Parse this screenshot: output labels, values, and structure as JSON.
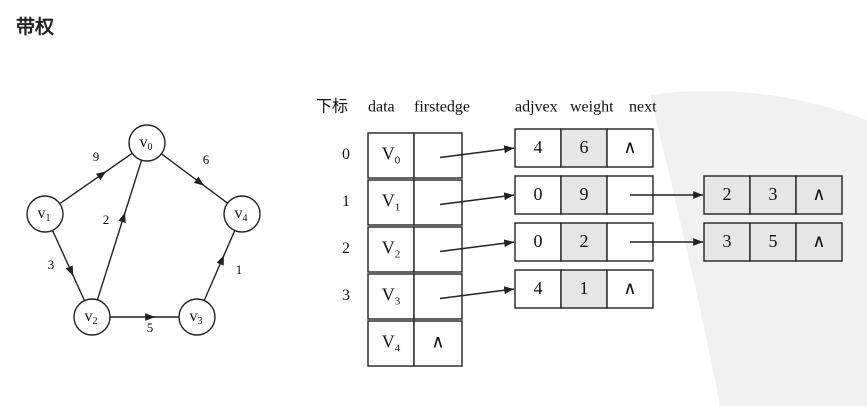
{
  "heading": "带权",
  "graph": {
    "vertices": [
      {
        "id": "v0",
        "base": "v",
        "sub": "0"
      },
      {
        "id": "v1",
        "base": "v",
        "sub": "1"
      },
      {
        "id": "v2",
        "base": "v",
        "sub": "2"
      },
      {
        "id": "v3",
        "base": "v",
        "sub": "3"
      },
      {
        "id": "v4",
        "base": "v",
        "sub": "4"
      }
    ],
    "edges": [
      {
        "from": "v1",
        "to": "v0",
        "weight": "9"
      },
      {
        "from": "v0",
        "to": "v4",
        "weight": "6"
      },
      {
        "from": "v2",
        "to": "v0",
        "weight": "2"
      },
      {
        "from": "v1",
        "to": "v2",
        "weight": "3"
      },
      {
        "from": "v2",
        "to": "v3",
        "weight": "5"
      },
      {
        "from": "v3",
        "to": "v4",
        "weight": "1"
      }
    ]
  },
  "table": {
    "header_index": "下标",
    "header_data": "data",
    "header_firstedge": "firstedge",
    "header_adjvex": "adjvex",
    "header_weight": "weight",
    "header_next": "next",
    "null_symbol": "∧",
    "rows": [
      {
        "index": "0",
        "base": "V",
        "sub": "0"
      },
      {
        "index": "1",
        "base": "V",
        "sub": "1"
      },
      {
        "index": "2",
        "base": "V",
        "sub": "2"
      },
      {
        "index": "3",
        "base": "V",
        "sub": "3"
      },
      {
        "index": "",
        "base": "V",
        "sub": "4"
      }
    ],
    "edge_nodes": [
      {
        "row": 0,
        "col": 0,
        "adjvex": "4",
        "weight": "6",
        "next": "∧"
      },
      {
        "row": 1,
        "col": 0,
        "adjvex": "0",
        "weight": "9",
        "next": ""
      },
      {
        "row": 1,
        "col": 1,
        "adjvex": "2",
        "weight": "3",
        "next": "∧"
      },
      {
        "row": 2,
        "col": 0,
        "adjvex": "0",
        "weight": "2",
        "next": ""
      },
      {
        "row": 2,
        "col": 1,
        "adjvex": "3",
        "weight": "5",
        "next": "∧"
      },
      {
        "row": 3,
        "col": 0,
        "adjvex": "4",
        "weight": "1",
        "next": "∧"
      }
    ]
  }
}
